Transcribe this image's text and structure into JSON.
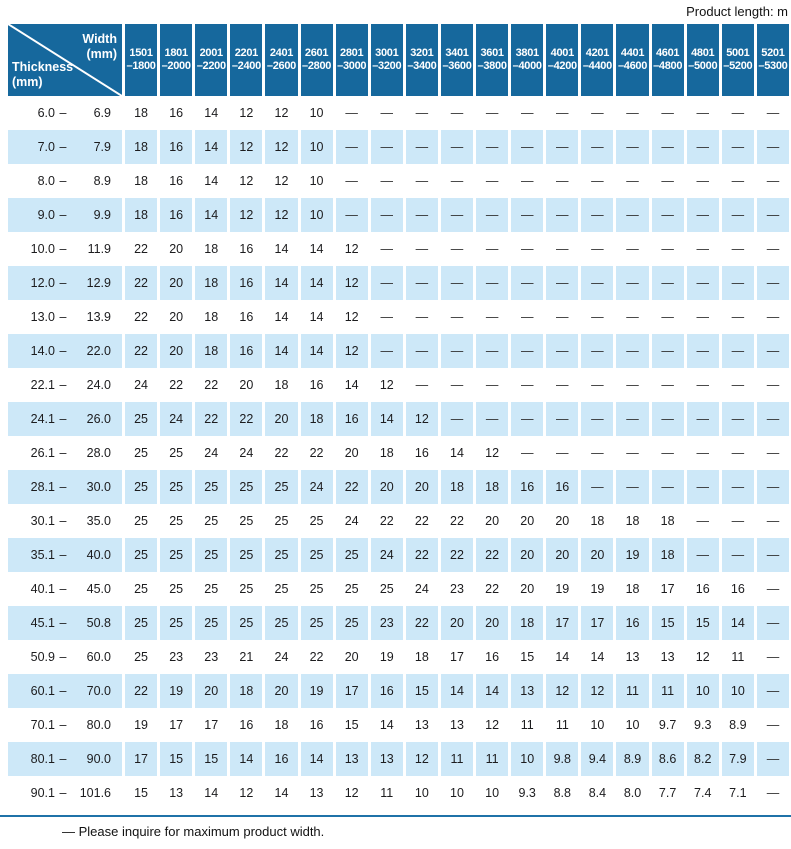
{
  "page": {
    "unit_note": "Product length: m",
    "footnote": "— Please inquire for maximum product width."
  },
  "table": {
    "corner": {
      "col_title_line1": "Width",
      "col_title_line2": "(mm)",
      "row_title_line1": "Thickness",
      "row_title_line2": "(mm)"
    },
    "width_columns": [
      {
        "from": "1501",
        "to": "–1800"
      },
      {
        "from": "1801",
        "to": "–2000"
      },
      {
        "from": "2001",
        "to": "–2200"
      },
      {
        "from": "2201",
        "to": "–2400"
      },
      {
        "from": "2401",
        "to": "–2600"
      },
      {
        "from": "2601",
        "to": "–2800"
      },
      {
        "from": "2801",
        "to": "–3000"
      },
      {
        "from": "3001",
        "to": "–3200"
      },
      {
        "from": "3201",
        "to": "–3400"
      },
      {
        "from": "3401",
        "to": "–3600"
      },
      {
        "from": "3601",
        "to": "–3800"
      },
      {
        "from": "3801",
        "to": "–4000"
      },
      {
        "from": "4001",
        "to": "–4200"
      },
      {
        "from": "4201",
        "to": "–4400"
      },
      {
        "from": "4401",
        "to": "–4600"
      },
      {
        "from": "4601",
        "to": "–4800"
      },
      {
        "from": "4801",
        "to": "–5000"
      },
      {
        "from": "5001",
        "to": "–5200"
      },
      {
        "from": "5201",
        "to": "–5300"
      }
    ],
    "rows": [
      {
        "min": "6.0",
        "max": "6.9",
        "values": [
          "18",
          "16",
          "14",
          "12",
          "12",
          "10",
          "—",
          "—",
          "—",
          "—",
          "—",
          "—",
          "—",
          "—",
          "—",
          "—",
          "—",
          "—",
          "—"
        ]
      },
      {
        "min": "7.0",
        "max": "7.9",
        "values": [
          "18",
          "16",
          "14",
          "12",
          "12",
          "10",
          "—",
          "—",
          "—",
          "—",
          "—",
          "—",
          "—",
          "—",
          "—",
          "—",
          "—",
          "—",
          "—"
        ]
      },
      {
        "min": "8.0",
        "max": "8.9",
        "values": [
          "18",
          "16",
          "14",
          "12",
          "12",
          "10",
          "—",
          "—",
          "—",
          "—",
          "—",
          "—",
          "—",
          "—",
          "—",
          "—",
          "—",
          "—",
          "—"
        ]
      },
      {
        "min": "9.0",
        "max": "9.9",
        "values": [
          "18",
          "16",
          "14",
          "12",
          "12",
          "10",
          "—",
          "—",
          "—",
          "—",
          "—",
          "—",
          "—",
          "—",
          "—",
          "—",
          "—",
          "—",
          "—"
        ]
      },
      {
        "min": "10.0",
        "max": "11.9",
        "values": [
          "22",
          "20",
          "18",
          "16",
          "14",
          "14",
          "12",
          "—",
          "—",
          "—",
          "—",
          "—",
          "—",
          "—",
          "—",
          "—",
          "—",
          "—",
          "—"
        ]
      },
      {
        "min": "12.0",
        "max": "12.9",
        "values": [
          "22",
          "20",
          "18",
          "16",
          "14",
          "14",
          "12",
          "—",
          "—",
          "—",
          "—",
          "—",
          "—",
          "—",
          "—",
          "—",
          "—",
          "—",
          "—"
        ]
      },
      {
        "min": "13.0",
        "max": "13.9",
        "values": [
          "22",
          "20",
          "18",
          "16",
          "14",
          "14",
          "12",
          "—",
          "—",
          "—",
          "—",
          "—",
          "—",
          "—",
          "—",
          "—",
          "—",
          "—",
          "—"
        ]
      },
      {
        "min": "14.0",
        "max": "22.0",
        "values": [
          "22",
          "20",
          "18",
          "16",
          "14",
          "14",
          "12",
          "—",
          "—",
          "—",
          "—",
          "—",
          "—",
          "—",
          "—",
          "—",
          "—",
          "—",
          "—"
        ]
      },
      {
        "min": "22.1",
        "max": "24.0",
        "values": [
          "24",
          "22",
          "22",
          "20",
          "18",
          "16",
          "14",
          "12",
          "—",
          "—",
          "—",
          "—",
          "—",
          "—",
          "—",
          "—",
          "—",
          "—",
          "—"
        ]
      },
      {
        "min": "24.1",
        "max": "26.0",
        "values": [
          "25",
          "24",
          "22",
          "22",
          "20",
          "18",
          "16",
          "14",
          "12",
          "—",
          "—",
          "—",
          "—",
          "—",
          "—",
          "—",
          "—",
          "—",
          "—"
        ]
      },
      {
        "min": "26.1",
        "max": "28.0",
        "values": [
          "25",
          "25",
          "24",
          "24",
          "22",
          "22",
          "20",
          "18",
          "16",
          "14",
          "12",
          "—",
          "—",
          "—",
          "—",
          "—",
          "—",
          "—",
          "—"
        ]
      },
      {
        "min": "28.1",
        "max": "30.0",
        "values": [
          "25",
          "25",
          "25",
          "25",
          "25",
          "24",
          "22",
          "20",
          "20",
          "18",
          "18",
          "16",
          "16",
          "—",
          "—",
          "—",
          "—",
          "—",
          "—"
        ]
      },
      {
        "min": "30.1",
        "max": "35.0",
        "values": [
          "25",
          "25",
          "25",
          "25",
          "25",
          "25",
          "24",
          "22",
          "22",
          "22",
          "20",
          "20",
          "20",
          "18",
          "18",
          "18",
          "—",
          "—",
          "—"
        ]
      },
      {
        "min": "35.1",
        "max": "40.0",
        "values": [
          "25",
          "25",
          "25",
          "25",
          "25",
          "25",
          "25",
          "24",
          "22",
          "22",
          "22",
          "20",
          "20",
          "20",
          "19",
          "18",
          "—",
          "—",
          "—"
        ]
      },
      {
        "min": "40.1",
        "max": "45.0",
        "values": [
          "25",
          "25",
          "25",
          "25",
          "25",
          "25",
          "25",
          "25",
          "24",
          "23",
          "22",
          "20",
          "19",
          "19",
          "18",
          "17",
          "16",
          "16",
          "—"
        ]
      },
      {
        "min": "45.1",
        "max": "50.8",
        "values": [
          "25",
          "25",
          "25",
          "25",
          "25",
          "25",
          "25",
          "23",
          "22",
          "20",
          "20",
          "18",
          "17",
          "17",
          "16",
          "15",
          "15",
          "14",
          "—"
        ]
      },
      {
        "min": "50.9",
        "max": "60.0",
        "values": [
          "25",
          "23",
          "23",
          "21",
          "24",
          "22",
          "20",
          "19",
          "18",
          "17",
          "16",
          "15",
          "14",
          "14",
          "13",
          "13",
          "12",
          "11",
          "—"
        ]
      },
      {
        "min": "60.1",
        "max": "70.0",
        "values": [
          "22",
          "19",
          "20",
          "18",
          "20",
          "19",
          "17",
          "16",
          "15",
          "14",
          "14",
          "13",
          "12",
          "12",
          "11",
          "11",
          "10",
          "10",
          "—"
        ]
      },
      {
        "min": "70.1",
        "max": "80.0",
        "values": [
          "19",
          "17",
          "17",
          "16",
          "18",
          "16",
          "15",
          "14",
          "13",
          "13",
          "12",
          "11",
          "11",
          "10",
          "10",
          "9.7",
          "9.3",
          "8.9",
          "—"
        ]
      },
      {
        "min": "80.1",
        "max": "90.0",
        "values": [
          "17",
          "15",
          "15",
          "14",
          "16",
          "14",
          "13",
          "13",
          "12",
          "11",
          "11",
          "10",
          "9.8",
          "9.4",
          "8.9",
          "8.6",
          "8.2",
          "7.9",
          "—"
        ]
      },
      {
        "min": "90.1",
        "max": "101.6",
        "values": [
          "15",
          "13",
          "14",
          "12",
          "14",
          "13",
          "12",
          "11",
          "10",
          "10",
          "10",
          "9.3",
          "8.8",
          "8.4",
          "8.0",
          "7.7",
          "7.4",
          "7.1",
          "—"
        ]
      }
    ]
  },
  "colors": {
    "header_blue": "#16689D",
    "row_blue": "#CDE8F8",
    "rule_blue": "#1F72A8",
    "text": "#1C1C1E"
  }
}
